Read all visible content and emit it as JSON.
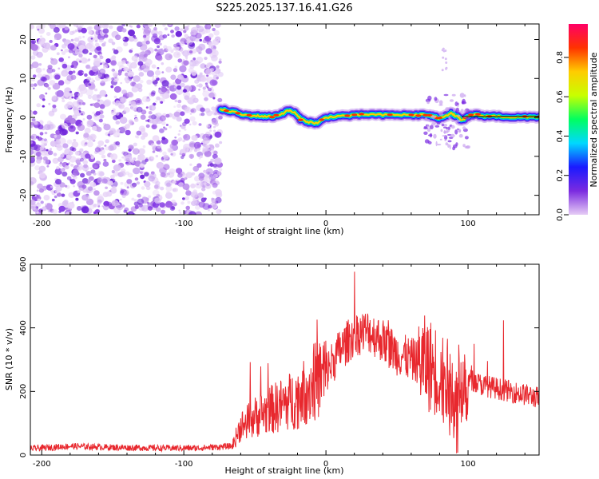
{
  "title": "S225.2025.137.16.41.G26",
  "chart_data": [
    {
      "type": "heatmap",
      "xlabel": "Height of straight line (km)",
      "ylabel": "Frequency (Hz)",
      "xlim": [
        -208,
        150
      ],
      "ylim": [
        -25,
        24
      ],
      "xticks": [
        -200,
        -100,
        0,
        100
      ],
      "yticks": [
        -20,
        -10,
        0,
        10,
        20
      ],
      "colorbar": {
        "label": "Normalized spectral amplitude",
        "ticks": [
          "0.0",
          "0.2",
          "0.4",
          "0.6",
          "0.8"
        ],
        "tick_values": [
          0.0,
          0.2,
          0.4,
          0.6,
          0.8
        ],
        "range": [
          0.0,
          0.97
        ],
        "colormap": [
          "#e6ccf5",
          "#7b2be0",
          "#1a1aff",
          "#00d8ff",
          "#00ff60",
          "#c8ff00",
          "#ffcc00",
          "#ff3300",
          "#ff0066"
        ]
      },
      "noise_region_x": [
        -208,
        -74
      ],
      "ridge": {
        "x": [
          -74,
          -66,
          -58,
          -50,
          -44,
          -38,
          -32,
          -26,
          -22,
          -18,
          -12,
          -6,
          0,
          10,
          20,
          30,
          40,
          50,
          60,
          70,
          76,
          80,
          84,
          88,
          92,
          96,
          100,
          104,
          110,
          120,
          130,
          140,
          150
        ],
        "freq": [
          2.0,
          1.5,
          0.6,
          0.4,
          0.3,
          0.2,
          0.8,
          1.8,
          1.2,
          -0.4,
          -1.2,
          -1.5,
          0.0,
          0.4,
          0.5,
          0.8,
          0.6,
          0.7,
          0.6,
          0.7,
          0.2,
          -0.3,
          0.5,
          1.0,
          0.3,
          -0.8,
          0.2,
          0.8,
          0.4,
          0.3,
          0.1,
          0.0,
          0.2
        ]
      }
    },
    {
      "type": "line",
      "xlabel": "Height of straight line (km)",
      "ylabel": "SNR (10 * v/v)",
      "xlim": [
        -208,
        150
      ],
      "ylim": [
        0,
        600
      ],
      "xticks": [
        -200,
        -100,
        0,
        100
      ],
      "yticks": [
        0,
        200,
        400,
        600
      ],
      "series": [
        {
          "color": "#e8282e",
          "x": [
            -208,
            -180,
            -150,
            -120,
            -90,
            -66,
            -60,
            -50,
            -40,
            -30,
            -20,
            -10,
            0,
            10,
            20,
            30,
            40,
            50,
            60,
            70,
            80,
            85,
            90,
            95,
            100,
            110,
            120,
            130,
            140,
            150
          ],
          "values": [
            20,
            28,
            24,
            22,
            22,
            28,
            90,
            120,
            140,
            160,
            180,
            220,
            260,
            330,
            380,
            390,
            360,
            320,
            300,
            290,
            260,
            220,
            200,
            240,
            240,
            220,
            210,
            200,
            190,
            180
          ]
        }
      ]
    }
  ]
}
